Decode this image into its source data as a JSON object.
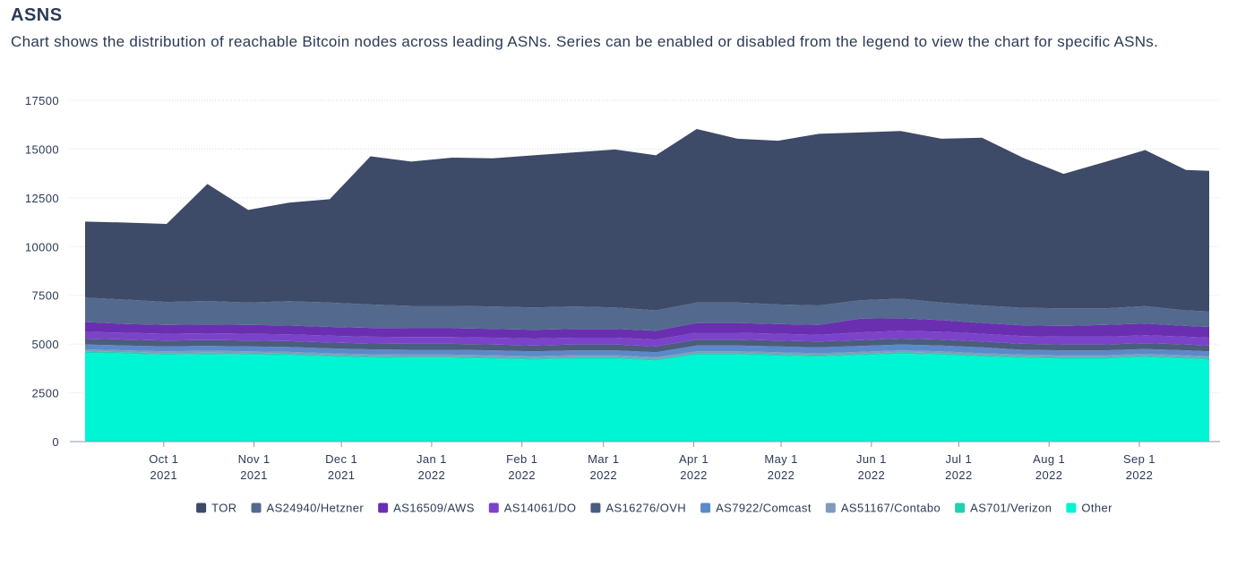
{
  "header": {
    "title": "ASNS",
    "subtitle": "Chart shows the distribution of reachable Bitcoin nodes across leading ASNs. Series can be enabled or disabled from the legend to view the chart for specific ASNs."
  },
  "chart_data": {
    "type": "area",
    "stacked": true,
    "grid": true,
    "legend_position": "bottom-center",
    "ylim": [
      0,
      17500
    ],
    "yticks": [
      0,
      2500,
      5000,
      7500,
      10000,
      12500,
      15000,
      17500
    ],
    "x_start": "2021-09-04",
    "x_end": "2022-09-25",
    "x_ticks": [
      {
        "date": "2021-10-01",
        "line1": "Oct 1",
        "line2": "2021"
      },
      {
        "date": "2021-11-01",
        "line1": "Nov 1",
        "line2": "2021"
      },
      {
        "date": "2021-12-01",
        "line1": "Dec 1",
        "line2": "2021"
      },
      {
        "date": "2022-01-01",
        "line1": "Jan 1",
        "line2": "2022"
      },
      {
        "date": "2022-02-01",
        "line1": "Feb 1",
        "line2": "2022"
      },
      {
        "date": "2022-03-01",
        "line1": "Mar 1",
        "line2": "2022"
      },
      {
        "date": "2022-04-01",
        "line1": "Apr 1",
        "line2": "2022"
      },
      {
        "date": "2022-05-01",
        "line1": "May 1",
        "line2": "2022"
      },
      {
        "date": "2022-06-01",
        "line1": "Jun 1",
        "line2": "2022"
      },
      {
        "date": "2022-07-01",
        "line1": "Jul 1",
        "line2": "2022"
      },
      {
        "date": "2022-08-01",
        "line1": "Aug 1",
        "line2": "2022"
      },
      {
        "date": "2022-09-01",
        "line1": "Sep 1",
        "line2": "2022"
      }
    ],
    "x": [
      "2021-09-04",
      "2021-09-18",
      "2021-10-02",
      "2021-10-16",
      "2021-10-30",
      "2021-11-13",
      "2021-11-27",
      "2021-12-11",
      "2021-12-25",
      "2022-01-08",
      "2022-01-22",
      "2022-02-05",
      "2022-02-19",
      "2022-03-05",
      "2022-03-19",
      "2022-04-02",
      "2022-04-16",
      "2022-04-30",
      "2022-05-14",
      "2022-05-28",
      "2022-06-11",
      "2022-06-25",
      "2022-07-09",
      "2022-07-23",
      "2022-08-06",
      "2022-08-20",
      "2022-09-03",
      "2022-09-17",
      "2022-09-25"
    ],
    "series": [
      {
        "name": "Other",
        "color": "#00f5d4",
        "values": [
          4550,
          4500,
          4450,
          4480,
          4450,
          4420,
          4350,
          4300,
          4280,
          4280,
          4250,
          4200,
          4250,
          4250,
          4150,
          4450,
          4450,
          4400,
          4350,
          4420,
          4500,
          4450,
          4350,
          4280,
          4250,
          4250,
          4320,
          4250,
          4200
        ]
      },
      {
        "name": "AS701/Verizon",
        "color": "#1fd1b0",
        "values": [
          80,
          80,
          80,
          80,
          80,
          80,
          80,
          80,
          80,
          80,
          80,
          80,
          80,
          80,
          80,
          80,
          80,
          80,
          80,
          80,
          80,
          80,
          80,
          80,
          80,
          80,
          80,
          80,
          80
        ]
      },
      {
        "name": "AS51167/Contabo",
        "color": "#7f9bbd",
        "values": [
          100,
          100,
          100,
          100,
          100,
          100,
          100,
          100,
          100,
          100,
          100,
          100,
          100,
          100,
          100,
          100,
          100,
          100,
          100,
          100,
          100,
          100,
          100,
          100,
          100,
          100,
          100,
          100,
          100
        ]
      },
      {
        "name": "AS7922/Comcast",
        "color": "#5a8ac9",
        "values": [
          250,
          250,
          250,
          250,
          250,
          250,
          250,
          250,
          250,
          250,
          250,
          250,
          250,
          250,
          250,
          300,
          300,
          300,
          300,
          300,
          300,
          300,
          300,
          250,
          250,
          250,
          250,
          250,
          250
        ]
      },
      {
        "name": "AS16276/OVH",
        "color": "#4b5d7c",
        "values": [
          300,
          300,
          300,
          300,
          300,
          300,
          300,
          300,
          300,
          300,
          300,
          300,
          300,
          300,
          300,
          300,
          300,
          300,
          300,
          300,
          300,
          300,
          300,
          300,
          300,
          300,
          300,
          300,
          300
        ]
      },
      {
        "name": "AS14061/DO",
        "color": "#7a43c9",
        "values": [
          350,
          350,
          350,
          350,
          350,
          350,
          350,
          350,
          350,
          350,
          350,
          350,
          350,
          350,
          350,
          350,
          350,
          350,
          350,
          400,
          400,
          400,
          400,
          400,
          400,
          400,
          400,
          400,
          400
        ]
      },
      {
        "name": "AS16509/AWS",
        "color": "#6a2fb0",
        "values": [
          500,
          450,
          450,
          450,
          450,
          450,
          450,
          450,
          450,
          450,
          450,
          450,
          450,
          450,
          450,
          500,
          500,
          500,
          500,
          700,
          650,
          600,
          550,
          550,
          550,
          600,
          600,
          550,
          550
        ]
      },
      {
        "name": "AS24940/Hetzner",
        "color": "#536a8e",
        "values": [
          1250,
          1250,
          1180,
          1200,
          1150,
          1250,
          1250,
          1200,
          1150,
          1150,
          1150,
          1150,
          1150,
          1100,
          1050,
          1050,
          1050,
          1000,
          1000,
          950,
          1000,
          900,
          900,
          900,
          900,
          850,
          900,
          800,
          800
        ]
      },
      {
        "name": "TOR",
        "color": "#3d4a68",
        "values": [
          3900,
          3950,
          4000,
          6000,
          4750,
          5050,
          5300,
          7600,
          7400,
          7600,
          7600,
          7800,
          7900,
          8100,
          7950,
          8900,
          8400,
          8400,
          8800,
          8600,
          8600,
          8400,
          8600,
          7700,
          6900,
          7500,
          8000,
          7200,
          7200
        ]
      }
    ],
    "legend_order": [
      "TOR",
      "AS24940/Hetzner",
      "AS16509/AWS",
      "AS14061/DO",
      "AS16276/OVH",
      "AS7922/Comcast",
      "AS51167/Contabo",
      "AS701/Verizon",
      "Other"
    ]
  }
}
